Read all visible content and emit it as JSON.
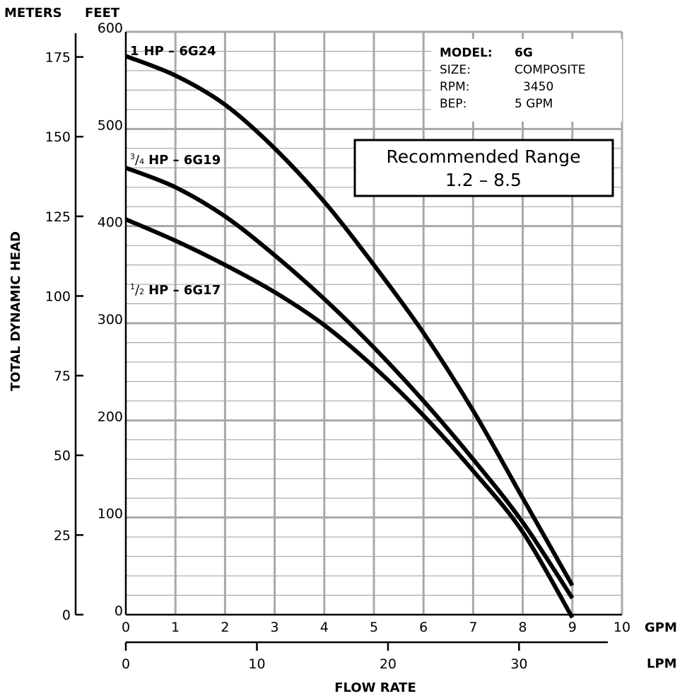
{
  "chart_data": {
    "type": "line",
    "y_axis_left": {
      "unit": "METERS",
      "ticks": [
        "0",
        "25",
        "50",
        "75",
        "100",
        "125",
        "150",
        "175"
      ],
      "range": [
        0,
        182.9
      ]
    },
    "y_axis_right": {
      "unit": "FEET",
      "ticks": [
        "0",
        "100",
        "200",
        "300",
        "400",
        "500",
        "600"
      ],
      "range": [
        0,
        600
      ],
      "minor_step": 20
    },
    "ylabel": "TOTAL DYNAMIC HEAD",
    "x_axis_top": {
      "unit": "GPM",
      "ticks": [
        "0",
        "1",
        "2",
        "3",
        "4",
        "5",
        "6",
        "7",
        "8",
        "9",
        "10"
      ],
      "range": [
        0,
        10
      ]
    },
    "x_axis_bottom": {
      "unit": "LPM",
      "ticks": [
        "0",
        "10",
        "20",
        "30"
      ]
    },
    "xlabel": "FLOW RATE",
    "grid": true,
    "series": [
      {
        "name": "1 HP – 6G24",
        "label_whole": "1",
        "label_frac": "",
        "label_rest": "HP – 6G24",
        "x": [
          0,
          1,
          2,
          3,
          4,
          5,
          6,
          7,
          8,
          9
        ],
        "y": [
          575,
          555,
          525,
          480,
          425,
          360,
          290,
          210,
          120,
          30
        ]
      },
      {
        "name": "3/4 HP – 6G19",
        "label_whole": "",
        "label_frac": "3/4",
        "label_rest": "HP – 6G19",
        "x": [
          0,
          1,
          2,
          3,
          4,
          5,
          6,
          7,
          8,
          9
        ],
        "y": [
          460,
          440,
          410,
          370,
          325,
          275,
          220,
          160,
          95,
          17
        ]
      },
      {
        "name": "1/2 HP – 6G17",
        "label_whole": "",
        "label_frac": "1/2",
        "label_rest": "HP – 6G17",
        "x": [
          0,
          1,
          2,
          3,
          4,
          5,
          6,
          7,
          8,
          9
        ],
        "y": [
          407,
          385,
          360,
          332,
          298,
          255,
          205,
          148,
          85,
          -3
        ]
      }
    ],
    "info_box": {
      "model_label": "MODEL:",
      "model_value": "6G",
      "size_label": "SIZE:",
      "size_value": "COMPOSITE",
      "rpm_label": "RPM:",
      "rpm_value": "3450",
      "bep_label": "BEP:",
      "bep_value": "5 GPM"
    },
    "range_box": {
      "line1": "Recommended Range",
      "line2": "1.2 – 8.5"
    }
  }
}
